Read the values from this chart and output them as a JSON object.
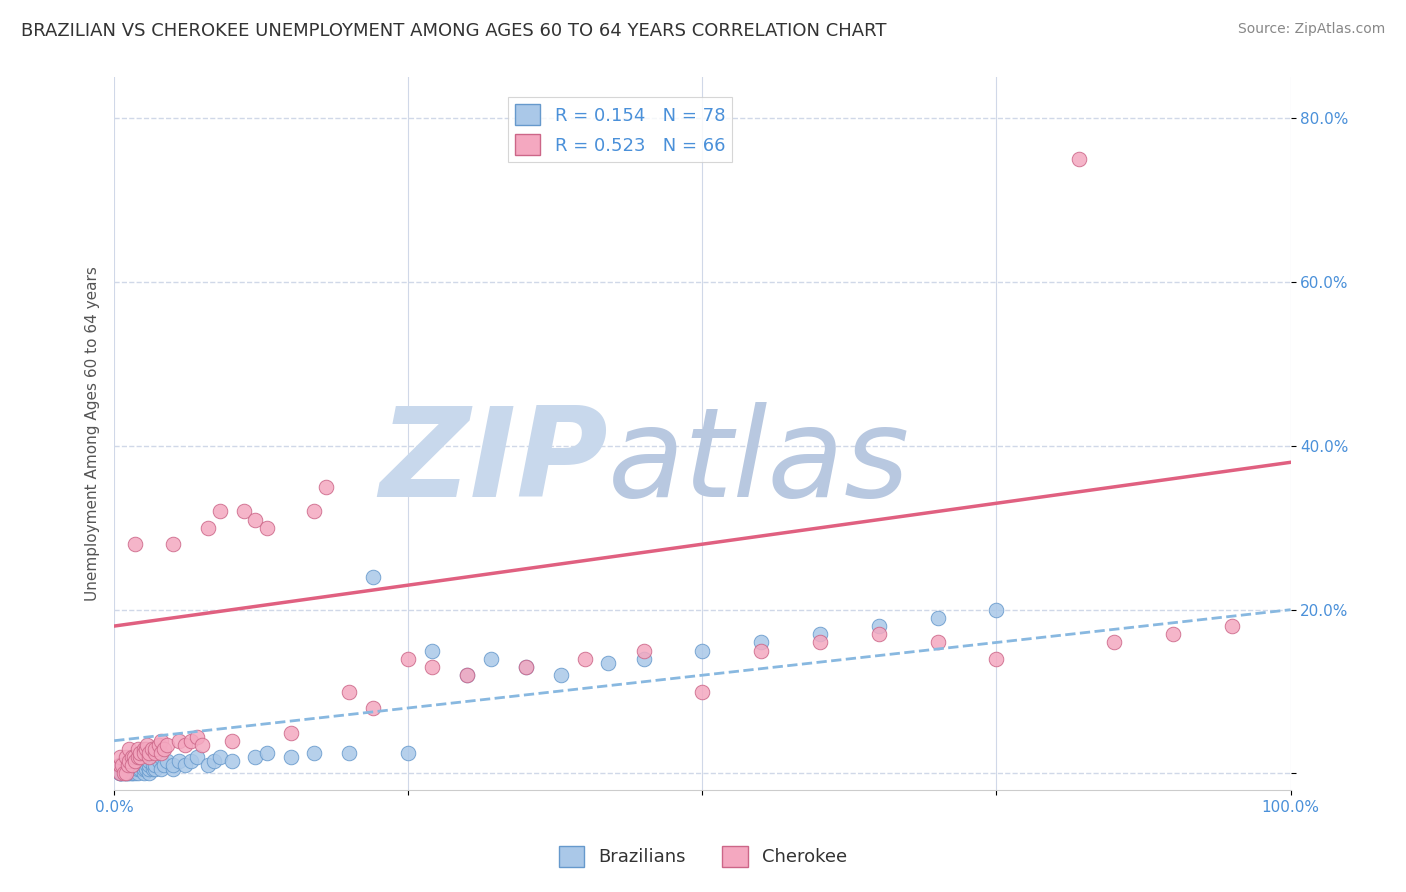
{
  "title": "BRAZILIAN VS CHEROKEE UNEMPLOYMENT AMONG AGES 60 TO 64 YEARS CORRELATION CHART",
  "source": "Source: ZipAtlas.com",
  "ylabel": "Unemployment Among Ages 60 to 64 years",
  "xlim": [
    0.0,
    1.0
  ],
  "ylim": [
    -0.02,
    0.85
  ],
  "yticks": [
    0.0,
    0.2,
    0.4,
    0.6,
    0.8
  ],
  "ytick_labels": [
    "",
    "20.0%",
    "40.0%",
    "60.0%",
    "80.0%"
  ],
  "legend_r1": "R = 0.154   N = 78",
  "legend_r2": "R = 0.523   N = 66",
  "legend_label1": "Brazilians",
  "legend_label2": "Cherokee",
  "color_blue": "#aac8e8",
  "color_pink": "#f4a8c0",
  "color_blue_line": "#88b8e0",
  "color_pink_line": "#e06080",
  "watermark_zip": "ZIP",
  "watermark_atlas": "atlas",
  "watermark_color_zip": "#c8d8ec",
  "watermark_color_atlas": "#b8c8e0",
  "background_color": "#ffffff",
  "grid_color": "#d0d8e8",
  "title_fontsize": 13,
  "axis_label_fontsize": 11,
  "tick_fontsize": 11,
  "legend_fontsize": 13,
  "blue_trend_x": [
    0.0,
    1.0
  ],
  "blue_trend_y": [
    0.04,
    0.2
  ],
  "pink_trend_x": [
    0.0,
    1.0
  ],
  "pink_trend_y": [
    0.18,
    0.38
  ],
  "blue_x": [
    0.005,
    0.005,
    0.005,
    0.005,
    0.006,
    0.007,
    0.008,
    0.01,
    0.01,
    0.01,
    0.01,
    0.01,
    0.012,
    0.012,
    0.012,
    0.013,
    0.013,
    0.015,
    0.015,
    0.015,
    0.015,
    0.016,
    0.017,
    0.018,
    0.018,
    0.02,
    0.02,
    0.02,
    0.022,
    0.022,
    0.025,
    0.025,
    0.025,
    0.027,
    0.028,
    0.03,
    0.03,
    0.03,
    0.03,
    0.033,
    0.033,
    0.035,
    0.035,
    0.038,
    0.04,
    0.04,
    0.042,
    0.045,
    0.05,
    0.05,
    0.055,
    0.06,
    0.065,
    0.07,
    0.08,
    0.085,
    0.09,
    0.1,
    0.12,
    0.13,
    0.15,
    0.17,
    0.2,
    0.22,
    0.25,
    0.27,
    0.3,
    0.32,
    0.35,
    0.38,
    0.42,
    0.45,
    0.5,
    0.55,
    0.6,
    0.65,
    0.7,
    0.75
  ],
  "blue_y": [
    0.0,
    0.0,
    0.0,
    0.01,
    0.0,
    0.0,
    0.0,
    0.0,
    0.0,
    0.005,
    0.005,
    0.01,
    0.0,
    0.005,
    0.01,
    0.0,
    0.01,
    0.0,
    0.0,
    0.005,
    0.01,
    0.005,
    0.01,
    0.0,
    0.005,
    0.0,
    0.005,
    0.01,
    0.02,
    0.005,
    0.0,
    0.005,
    0.01,
    0.005,
    0.01,
    0.0,
    0.005,
    0.01,
    0.015,
    0.005,
    0.01,
    0.005,
    0.01,
    0.015,
    0.02,
    0.005,
    0.01,
    0.015,
    0.005,
    0.01,
    0.015,
    0.01,
    0.015,
    0.02,
    0.01,
    0.015,
    0.02,
    0.015,
    0.02,
    0.025,
    0.02,
    0.025,
    0.025,
    0.24,
    0.025,
    0.15,
    0.12,
    0.14,
    0.13,
    0.12,
    0.135,
    0.14,
    0.15,
    0.16,
    0.17,
    0.18,
    0.19,
    0.2
  ],
  "pink_x": [
    0.005,
    0.005,
    0.005,
    0.007,
    0.008,
    0.01,
    0.01,
    0.012,
    0.013,
    0.013,
    0.015,
    0.015,
    0.017,
    0.018,
    0.018,
    0.02,
    0.02,
    0.022,
    0.022,
    0.025,
    0.025,
    0.027,
    0.028,
    0.03,
    0.03,
    0.032,
    0.035,
    0.035,
    0.038,
    0.04,
    0.04,
    0.042,
    0.045,
    0.05,
    0.055,
    0.06,
    0.065,
    0.07,
    0.075,
    0.08,
    0.09,
    0.1,
    0.11,
    0.12,
    0.13,
    0.15,
    0.17,
    0.18,
    0.2,
    0.22,
    0.25,
    0.27,
    0.3,
    0.35,
    0.4,
    0.45,
    0.5,
    0.55,
    0.6,
    0.65,
    0.7,
    0.75,
    0.82,
    0.85,
    0.9,
    0.95
  ],
  "pink_y": [
    0.0,
    0.01,
    0.02,
    0.01,
    0.0,
    0.0,
    0.02,
    0.01,
    0.03,
    0.015,
    0.02,
    0.01,
    0.02,
    0.015,
    0.28,
    0.02,
    0.03,
    0.02,
    0.025,
    0.03,
    0.025,
    0.03,
    0.035,
    0.02,
    0.025,
    0.03,
    0.025,
    0.03,
    0.035,
    0.04,
    0.025,
    0.03,
    0.035,
    0.28,
    0.04,
    0.035,
    0.04,
    0.045,
    0.035,
    0.3,
    0.32,
    0.04,
    0.32,
    0.31,
    0.3,
    0.05,
    0.32,
    0.35,
    0.1,
    0.08,
    0.14,
    0.13,
    0.12,
    0.13,
    0.14,
    0.15,
    0.1,
    0.15,
    0.16,
    0.17,
    0.16,
    0.14,
    0.75,
    0.16,
    0.17,
    0.18
  ]
}
